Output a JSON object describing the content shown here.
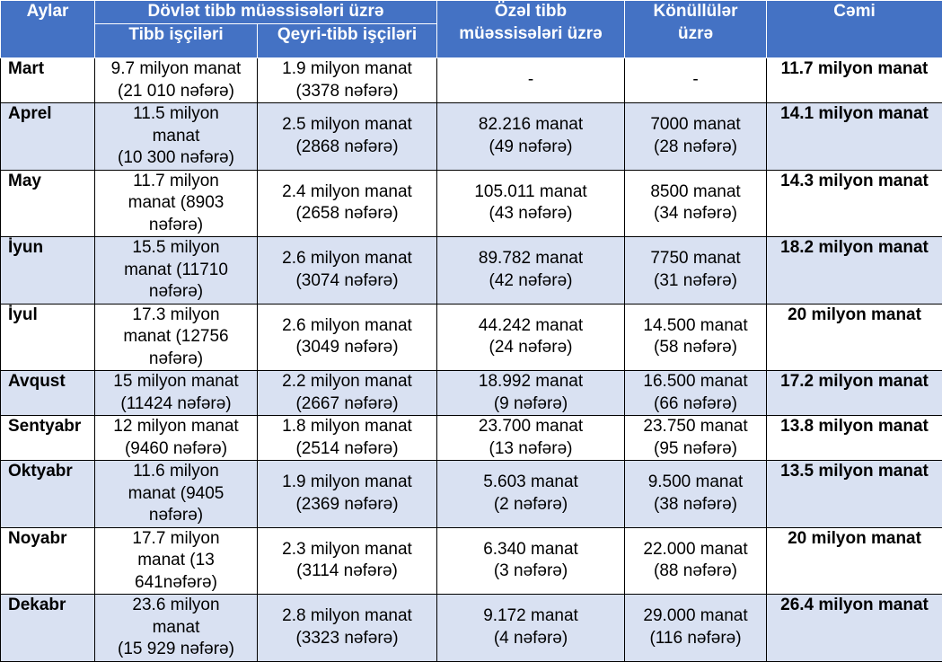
{
  "headers": {
    "months": "Aylar",
    "state": "Dövlət tibb müəssisələri üzrə",
    "medical": "Tibb işçiləri",
    "non_medical": "Qeyri-tibb işçiləri",
    "private": [
      "Özəl tibb",
      "müəssisələri üzrə"
    ],
    "volunteers": [
      "Könüllülər",
      "üzrə"
    ],
    "total": "Cəmi"
  },
  "rows": [
    {
      "month": "Mart",
      "medical": [
        "9.7 milyon manat",
        "(21 010 nəfərə)"
      ],
      "non_medical": [
        "1.9 milyon manat",
        "(3378 nəfərə)"
      ],
      "private": [
        "-"
      ],
      "volunteers": [
        "-"
      ],
      "total": "11.7 milyon manat"
    },
    {
      "month": "Aprel",
      "medical": [
        "11.5 milyon",
        "manat",
        "(10 300 nəfərə)"
      ],
      "non_medical": [
        "2.5 milyon manat",
        "(2868 nəfərə)"
      ],
      "private": [
        "82.216 manat",
        "(49 nəfərə)"
      ],
      "volunteers": [
        "7000 manat",
        "(28 nəfərə)"
      ],
      "total": "14.1 milyon manat"
    },
    {
      "month": "May",
      "medical": [
        "11.7 milyon",
        "manat (8903",
        "nəfərə)"
      ],
      "non_medical": [
        "2.4 milyon manat",
        "(2658 nəfərə)"
      ],
      "private": [
        "105.011 manat",
        "(43 nəfərə)"
      ],
      "volunteers": [
        "8500 manat",
        "(34 nəfərə)"
      ],
      "total": "14.3 milyon manat"
    },
    {
      "month": "İyun",
      "medical": [
        "15.5 milyon",
        "manat (11710",
        "nəfərə)"
      ],
      "non_medical": [
        "2.6 milyon manat",
        "(3074 nəfərə)"
      ],
      "private": [
        "89.782 manat",
        "(42 nəfərə)"
      ],
      "volunteers": [
        "7750 manat",
        "(31 nəfərə)"
      ],
      "total": "18.2 milyon manat"
    },
    {
      "month": "İyul",
      "medical": [
        "17.3 milyon",
        "manat (12756",
        "nəfərə)"
      ],
      "non_medical": [
        "2.6 milyon manat",
        "(3049 nəfərə)"
      ],
      "private": [
        "44.242 manat",
        "(24 nəfərə)"
      ],
      "volunteers": [
        "14.500 manat",
        "(58 nəfərə)"
      ],
      "total": "20 milyon manat"
    },
    {
      "month": "Avqust",
      "medical": [
        "15 milyon manat",
        "(11424 nəfərə)"
      ],
      "non_medical": [
        "2.2 milyon manat",
        "(2667 nəfərə)"
      ],
      "private": [
        "18.992 manat",
        "(9 nəfərə)"
      ],
      "volunteers": [
        "16.500 manat",
        "(66 nəfərə)"
      ],
      "total": "17.2 milyon manat"
    },
    {
      "month": "Sentyabr",
      "medical": [
        "12 milyon manat",
        "(9460 nəfərə)"
      ],
      "non_medical": [
        "1.8 milyon manat",
        "(2514 nəfərə)"
      ],
      "private": [
        "23.700 manat",
        "(13 nəfərə)"
      ],
      "volunteers": [
        "23.750 manat",
        "(95 nəfərə)"
      ],
      "total": "13.8 milyon manat"
    },
    {
      "month": "Oktyabr",
      "medical": [
        "11.6 milyon",
        "manat (9405",
        "nəfərə)"
      ],
      "non_medical": [
        "1.9 milyon manat",
        "(2369 nəfərə)"
      ],
      "private": [
        "5.603 manat",
        "(2 nəfərə)"
      ],
      "volunteers": [
        "9.500 manat",
        "(38 nəfərə)"
      ],
      "total": "13.5 milyon manat"
    },
    {
      "month": "Noyabr",
      "medical": [
        "17.7 milyon",
        "manat (13",
        "641nəfərə)"
      ],
      "non_medical": [
        "2.3 milyon manat",
        "(3114 nəfərə)"
      ],
      "private": [
        "6.340 manat",
        "(3 nəfərə)"
      ],
      "volunteers": [
        "22.000 manat",
        "(88 nəfərə)"
      ],
      "total": "20 milyon manat"
    },
    {
      "month": "Dekabr",
      "medical": [
        "23.6 milyon",
        "manat",
        "(15 929 nəfərə)"
      ],
      "non_medical": [
        "2.8 milyon manat",
        "(3323 nəfərə)"
      ],
      "private": [
        "9.172 manat",
        "(4 nəfərə)"
      ],
      "volunteers": [
        "29.000 manat",
        "(116 nəfərə)"
      ],
      "total": "26.4 milyon manat"
    }
  ],
  "colors": {
    "header_bg": "#4472c4",
    "header_text": "#ffffff",
    "alt_row_bg": "#d9e1f2",
    "row_bg": "#ffffff",
    "border": "#000000"
  }
}
